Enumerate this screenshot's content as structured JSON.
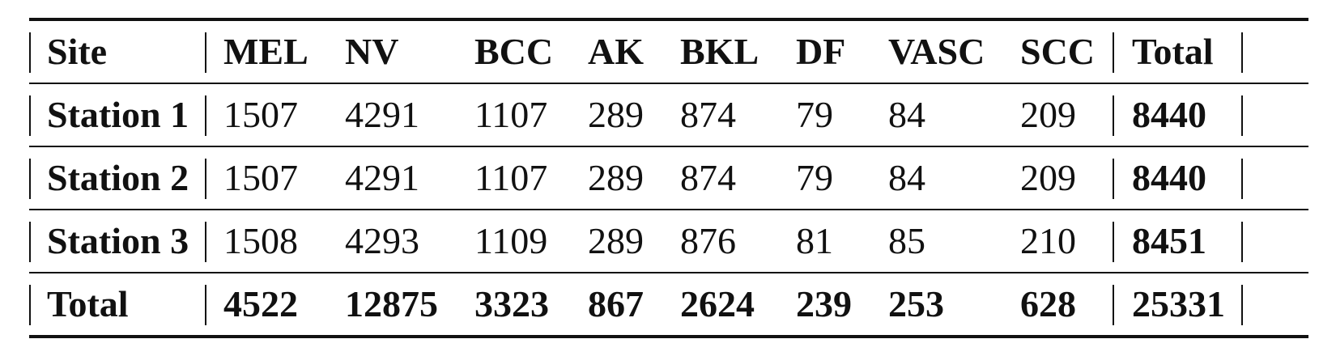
{
  "table": {
    "headers": [
      "Site",
      "MEL",
      "NV",
      "BCC",
      "AK",
      "BKL",
      "DF",
      "VASC",
      "SCC",
      "Total"
    ],
    "rows": [
      [
        "Station 1",
        "1507",
        "4291",
        "1107",
        "289",
        "874",
        "79",
        "84",
        "209",
        "8440"
      ],
      [
        "Station 2",
        "1507",
        "4291",
        "1107",
        "289",
        "874",
        "79",
        "84",
        "209",
        "8440"
      ],
      [
        "Station 3",
        "1508",
        "4293",
        "1109",
        "289",
        "876",
        "81",
        "85",
        "210",
        "8451"
      ],
      [
        "Total",
        "4522",
        "12875",
        "3323",
        "867",
        "2624",
        "239",
        "253",
        "628",
        "25331"
      ]
    ]
  }
}
